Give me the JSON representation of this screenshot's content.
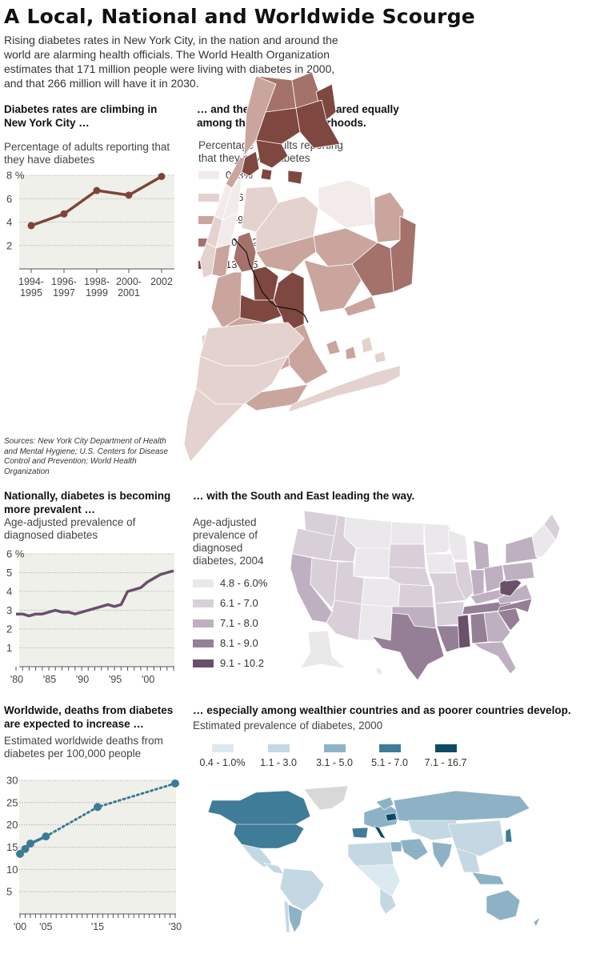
{
  "header": {
    "title": "A Local, National and Worldwide Scourge",
    "intro": "Rising diabetes rates in New York City, in the nation and around the world are alarming health officials. The World Health Organization estimates that 171 million people were living with diabetes in 2000, and that 266 million will have it in 2030."
  },
  "sources": "Sources: New York City Department of Health and Mental Hygiene; U.S. Centers for Disease Control and Prevention; World Health Organization",
  "nyc_section": {
    "headline": "Diabetes rates are climbing in New York City …",
    "subhead": "Percentage of adults reporting that they have diabetes"
  },
  "nyc_map_section": {
    "headline": "… and the burden is not shared equally among the city’s neighborhoods.",
    "subhead": "Percentage of adults reporting that they have diabetes",
    "legend": [
      {
        "label": "0 -3%",
        "color": "#f3eaea"
      },
      {
        "label": "4 -6",
        "color": "#e4d2cf"
      },
      {
        "label": "7 -9",
        "color": "#c9a59d"
      },
      {
        "label": "10 - 12",
        "color": "#a4726a"
      },
      {
        "label": "13 - 15",
        "color": "#7e473f"
      }
    ]
  },
  "national_section": {
    "headline": "Nationally, diabetes is becoming more prevalent …",
    "subhead": "Age-adjusted prevalence of diagnosed diabetes"
  },
  "us_map_section": {
    "headline": "… with the South and East leading the way.",
    "subhead": "Age-adjusted prevalence of diagnosed diabetes, 2004",
    "legend": [
      {
        "label": "4.8 - 6.0%",
        "color": "#ebe8ec"
      },
      {
        "label": "6.1 - 7.0",
        "color": "#d8cfd9"
      },
      {
        "label": "7.1 - 8.0",
        "color": "#beb0c0"
      },
      {
        "label": "8.1 - 9.0",
        "color": "#957f97"
      },
      {
        "label": "9.1 - 10.2",
        "color": "#6b5069"
      }
    ]
  },
  "world_section": {
    "headline": "Worldwide, deaths from diabetes are expected to increase …",
    "subhead": "Estimated worldwide deaths from diabetes per 100,000 people"
  },
  "world_map_section": {
    "headline": "… especially among wealthier countries and as poorer countries develop.",
    "subhead": "Estimated prevalence of diabetes, 2000",
    "legend": [
      {
        "label": "0.4 - 1.0%",
        "color": "#dde9f0"
      },
      {
        "label": "1.1 - 3.0",
        "color": "#c4d8e4"
      },
      {
        "label": "3.1 - 5.0",
        "color": "#8db2c6"
      },
      {
        "label": "5.1 - 7.0",
        "color": "#3f7c98"
      },
      {
        "label": "7.1 - 16.7",
        "color": "#0d4a66"
      }
    ]
  },
  "chart_data": [
    {
      "id": "nyc",
      "type": "line",
      "title": "Diabetes rates are climbing in New York City …",
      "ylabel": "Percentage of adults reporting that they have diabetes",
      "categories": [
        [
          "1994-",
          "1995"
        ],
        [
          "1996-",
          "1997"
        ],
        [
          "1998-",
          "1999"
        ],
        [
          "2000-",
          "2001"
        ],
        [
          "2002",
          ""
        ]
      ],
      "values": [
        3.7,
        4.7,
        6.7,
        6.3,
        7.9
      ],
      "ylim": [
        0,
        8
      ],
      "yticks": [
        {
          "v": 8,
          "label": "8 %"
        },
        {
          "v": 6,
          "label": "6"
        },
        {
          "v": 4,
          "label": "4"
        },
        {
          "v": 2,
          "label": "2"
        }
      ],
      "grid": true,
      "color": "#7d4538",
      "background": "#f0f0ea"
    },
    {
      "id": "national",
      "type": "line",
      "title": "Nationally, diabetes is becoming more prevalent …",
      "ylabel": "Age-adjusted prevalence of diagnosed diabetes",
      "x": [
        1980,
        1981,
        1982,
        1983,
        1984,
        1985,
        1986,
        1987,
        1988,
        1989,
        1990,
        1991,
        1992,
        1993,
        1994,
        1995,
        1996,
        1997,
        1998,
        1999,
        2000,
        2001,
        2002,
        2003,
        2004
      ],
      "values": [
        2.8,
        2.8,
        2.7,
        2.8,
        2.8,
        2.9,
        3.0,
        2.9,
        2.9,
        2.8,
        2.9,
        3.0,
        3.1,
        3.2,
        3.3,
        3.2,
        3.3,
        4.0,
        4.1,
        4.2,
        4.5,
        4.7,
        4.9,
        5.0,
        5.1
      ],
      "xlim": [
        1980,
        2004
      ],
      "xticks": [
        {
          "v": 1980,
          "label": "'80"
        },
        {
          "v": 1985,
          "label": "'85"
        },
        {
          "v": 1990,
          "label": "'90"
        },
        {
          "v": 1995,
          "label": "'95"
        },
        {
          "v": 2000,
          "label": "'00"
        }
      ],
      "ylim": [
        0,
        6
      ],
      "yticks": [
        {
          "v": 6,
          "label": "6 %"
        },
        {
          "v": 5,
          "label": "5"
        },
        {
          "v": 4,
          "label": "4"
        },
        {
          "v": 3,
          "label": "3"
        },
        {
          "v": 2,
          "label": "2"
        },
        {
          "v": 1,
          "label": "1"
        }
      ],
      "grid": true,
      "color": "#6b4f6c",
      "background": "#f0f0ea"
    },
    {
      "id": "world",
      "type": "line",
      "title": "Worldwide, deaths from diabetes are expected to increase …",
      "ylabel": "Estimated worldwide deaths from diabetes per 100,000 people",
      "x": [
        2000,
        2001,
        2002,
        2005,
        2015,
        2030
      ],
      "values": [
        13.5,
        14.6,
        15.8,
        17.4,
        24.0,
        29.3
      ],
      "observed_through": 2005,
      "projected_style": "dotted",
      "xlim": [
        2000,
        2030
      ],
      "xticks": [
        {
          "v": 2000,
          "label": "'00"
        },
        {
          "v": 2005,
          "label": "'05"
        },
        {
          "v": 2015,
          "label": "'15"
        },
        {
          "v": 2030,
          "label": "'30"
        }
      ],
      "ylim": [
        0,
        30
      ],
      "yticks": [
        {
          "v": 30,
          "label": "30"
        },
        {
          "v": 25,
          "label": "25"
        },
        {
          "v": 20,
          "label": "20"
        },
        {
          "v": 15,
          "label": "15"
        },
        {
          "v": 10,
          "label": "10"
        },
        {
          "v": 5,
          "label": "5"
        }
      ],
      "grid": true,
      "color": "#3a7b96",
      "background": "#f0f0ea"
    }
  ]
}
